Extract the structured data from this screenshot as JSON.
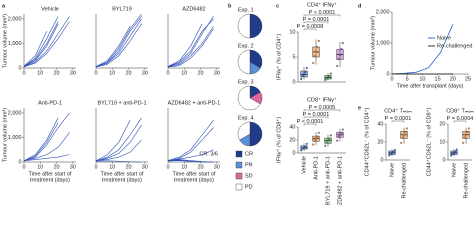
{
  "chart_data": [
    {
      "type": "line",
      "panel": "a",
      "title": "Vehicle",
      "ylabel": "Tumour volume (mm³)",
      "x": [
        0,
        7,
        14,
        21,
        28
      ],
      "color": "#2a4db5",
      "xlim": [
        0,
        32
      ],
      "ylim": [
        0,
        2200
      ],
      "xticks": [
        0,
        10,
        20,
        30
      ],
      "yticks": [
        0,
        {
          "value": 1000,
          "label": "1,000"
        },
        {
          "value": 2000,
          "label": "2,000"
        }
      ],
      "series": [
        {
          "values": [
            60,
            400,
            1200,
            2100,
            null
          ]
        },
        {
          "values": [
            50,
            300,
            900,
            1800,
            null
          ]
        },
        {
          "values": [
            70,
            500,
            1500,
            null,
            null
          ]
        },
        {
          "values": [
            40,
            250,
            700,
            1400,
            2100
          ]
        },
        {
          "values": [
            60,
            350,
            1000,
            1900,
            null
          ]
        },
        {
          "values": [
            50,
            200,
            600,
            1200,
            1900
          ]
        }
      ]
    },
    {
      "type": "line",
      "title": "BYL719",
      "x": [
        0,
        7,
        14,
        21,
        28
      ],
      "color": "#2a4db5",
      "xlim": [
        0,
        32
      ],
      "ylim": [
        0,
        2200
      ],
      "xticks": [
        0,
        10,
        20,
        30
      ],
      "series": [
        {
          "values": [
            50,
            200,
            700,
            1500,
            2100
          ]
        },
        {
          "values": [
            60,
            300,
            900,
            1700,
            null
          ]
        },
        {
          "values": [
            40,
            150,
            500,
            1100,
            1800
          ]
        },
        {
          "values": [
            50,
            250,
            800,
            1600,
            2200
          ]
        },
        {
          "values": [
            60,
            200,
            600,
            1300,
            2000
          ]
        }
      ]
    },
    {
      "type": "line",
      "title": "AZD6482",
      "x": [
        0,
        7,
        14,
        21,
        28
      ],
      "color": "#2a4db5",
      "xlim": [
        0,
        32
      ],
      "ylim": [
        0,
        2200
      ],
      "xticks": [
        0,
        10,
        20,
        30
      ],
      "series": [
        {
          "values": [
            50,
            200,
            600,
            1400,
            2100
          ]
        },
        {
          "values": [
            40,
            150,
            500,
            1000,
            1700
          ]
        },
        {
          "values": [
            60,
            300,
            900,
            1800,
            null
          ]
        },
        {
          "values": [
            50,
            250,
            700,
            1500,
            2000
          ]
        },
        {
          "values": [
            40,
            100,
            400,
            900,
            1600
          ]
        }
      ]
    },
    {
      "type": "line",
      "title": "Anti-PD-1",
      "ylabel": "Tumour volume (mm³)",
      "xlabel": [
        "Time after start of",
        "treatment (days)"
      ],
      "x": [
        0,
        7,
        14,
        21,
        28
      ],
      "color": "#2a4db5",
      "xlim": [
        0,
        32
      ],
      "ylim": [
        0,
        2200
      ],
      "xticks": [
        0,
        10,
        20,
        30
      ],
      "yticks": [
        0,
        {
          "value": 1000,
          "label": "1,000"
        },
        {
          "value": 2000,
          "label": "2,000"
        }
      ],
      "series": [
        {
          "values": [
            50,
            300,
            900,
            1800,
            null
          ]
        },
        {
          "values": [
            40,
            200,
            700,
            1400,
            2000
          ]
        },
        {
          "values": [
            60,
            150,
            300,
            600,
            1200
          ]
        },
        {
          "values": [
            50,
            100,
            150,
            200,
            300
          ]
        },
        {
          "values": [
            40,
            250,
            800,
            1600,
            null
          ]
        }
      ]
    },
    {
      "type": "line",
      "title": "BYL719 + anti-PD-1",
      "xlabel": [
        "Time after start of",
        "treatment (days)"
      ],
      "x": [
        0,
        7,
        14,
        21,
        28
      ],
      "color": "#2a4db5",
      "xlim": [
        0,
        32
      ],
      "ylim": [
        0,
        2200
      ],
      "xticks": [
        0,
        10,
        20,
        30
      ],
      "series": [
        {
          "values": [
            50,
            300,
            800,
            1700,
            null
          ]
        },
        {
          "values": [
            40,
            200,
            500,
            1100,
            1800
          ]
        },
        {
          "values": [
            60,
            100,
            200,
            400,
            900
          ]
        },
        {
          "values": [
            50,
            150,
            350,
            800,
            1500
          ]
        },
        {
          "values": [
            40,
            50,
            30,
            10,
            0
          ]
        }
      ]
    },
    {
      "type": "line",
      "title": "AZD6482 + anti-PD-1",
      "xlabel": [
        "Time after start of",
        "treatment (days)"
      ],
      "annotation": "CR: 3/6",
      "x": [
        0,
        7,
        14,
        21,
        28
      ],
      "color": "#2a4db5",
      "xlim": [
        0,
        32
      ],
      "ylim": [
        0,
        2200
      ],
      "xticks": [
        0,
        10,
        20,
        30
      ],
      "series": [
        {
          "values": [
            50,
            100,
            60,
            20,
            0
          ]
        },
        {
          "values": [
            40,
            80,
            30,
            0,
            0
          ]
        },
        {
          "values": [
            60,
            200,
            500,
            1100,
            1700
          ]
        },
        {
          "values": [
            50,
            60,
            20,
            0,
            0
          ]
        },
        {
          "values": [
            40,
            150,
            400,
            900,
            1400
          ]
        },
        {
          "values": [
            50,
            120,
            200,
            300,
            500
          ]
        }
      ]
    },
    {
      "type": "pie",
      "panel": "b",
      "title": "Exp. 1",
      "categories": [
        "CR",
        "PR",
        "SD",
        "PD"
      ],
      "colors": [
        "#1f3b8c",
        "#5b8fd9",
        "#e2659f",
        "#ffffff"
      ],
      "values": [
        3,
        0,
        0,
        3
      ]
    },
    {
      "type": "pie",
      "title": "Exp. 2",
      "colors": [
        "#1f3b8c",
        "#5b8fd9",
        "#e2659f",
        "#ffffff"
      ],
      "values": [
        2,
        1,
        0,
        3
      ]
    },
    {
      "type": "pie",
      "title": "Exp. 3",
      "colors": [
        "#1f3b8c",
        "#5b8fd9",
        "#e2659f",
        "#ffffff"
      ],
      "values": [
        1,
        0,
        1,
        4
      ]
    },
    {
      "type": "pie",
      "title": "Exp. 4",
      "colors": [
        "#1f3b8c",
        "#5b8fd9",
        "#e2659f",
        "#ffffff"
      ],
      "values": [
        3,
        1,
        0,
        2
      ]
    },
    {
      "type": "box",
      "panel": "c",
      "title": "CD4⁺ IFNγ⁺",
      "ylabel": "IFNγ⁺ (% of CD4⁺)",
      "categories": [
        null,
        null,
        null,
        null
      ],
      "colors": [
        "#3d6fd6",
        "#f28c38",
        "#4caf50",
        "#b45fc8"
      ],
      "ylim": [
        0,
        10
      ],
      "yticks": [
        0,
        5,
        10
      ],
      "annotations": [
        "P = 0.0008",
        "P = 0.0001",
        "P < 0.0001"
      ],
      "boxes": [
        {
          "whislo": 0.5,
          "q1": 1,
          "med": 1.5,
          "q3": 2.2,
          "whishi": 3,
          "points": [
            0.6,
            1.2,
            1.6,
            2.0,
            2.8
          ]
        },
        {
          "whislo": 3.5,
          "q1": 5,
          "med": 6,
          "q3": 7,
          "whishi": 8.5,
          "points": [
            3.8,
            5.2,
            6.1,
            7.0,
            8.2
          ]
        },
        {
          "whislo": 0.3,
          "q1": 0.6,
          "med": 0.9,
          "q3": 1.3,
          "whishi": 1.8,
          "points": [
            0.4,
            0.7,
            1.0,
            1.2,
            1.7
          ]
        },
        {
          "whislo": 3,
          "q1": 4.5,
          "med": 5.5,
          "q3": 6.5,
          "whishi": 8,
          "points": [
            3.2,
            4.6,
            5.4,
            6.6,
            7.8
          ]
        }
      ]
    },
    {
      "type": "box",
      "title": "CD8⁺ IFNγ⁺",
      "ylabel": "IFNγ⁺ (% of CD8⁺)",
      "categories": [
        "Vehicle",
        "Anti-PD-1",
        "BYL719 + anti-PD-1",
        "AZD6482 + anti-PD-1"
      ],
      "colors": [
        "#3d6fd6",
        "#f28c38",
        "#4caf50",
        "#b45fc8"
      ],
      "ylim": [
        0,
        40
      ],
      "yticks": [
        0,
        20,
        40
      ],
      "annotations": [
        "P < 0.0001",
        "P = 0.0001",
        "P = 0.0005"
      ],
      "boxes": [
        {
          "whislo": 3,
          "q1": 6,
          "med": 8,
          "q3": 11,
          "whishi": 15,
          "points": [
            4,
            7,
            8,
            10,
            14
          ]
        },
        {
          "whislo": 12,
          "q1": 18,
          "med": 22,
          "q3": 26,
          "whishi": 32,
          "points": [
            13,
            19,
            22,
            25,
            31
          ]
        },
        {
          "whislo": 10,
          "q1": 15,
          "med": 19,
          "q3": 23,
          "whishi": 28,
          "points": [
            11,
            16,
            19,
            22,
            27
          ]
        },
        {
          "whislo": 18,
          "q1": 24,
          "med": 28,
          "q3": 32,
          "whishi": 37,
          "points": [
            19,
            25,
            28,
            31,
            36
          ]
        }
      ]
    },
    {
      "type": "line",
      "panel": "d",
      "ylabel": "Tumour volume (mm³)",
      "xlabel": [
        "Time after transplant (days)"
      ],
      "legend": "right",
      "x": [
        0,
        4,
        8,
        12,
        16,
        20
      ],
      "xlim": [
        0,
        25
      ],
      "ylim": [
        0,
        2000
      ],
      "xticks": [
        0,
        5,
        10,
        15,
        20,
        25
      ],
      "yticks": [
        0,
        {
          "value": 1000,
          "label": "1,000"
        },
        {
          "value": 2000,
          "label": "2,000"
        }
      ],
      "series": [
        {
          "name": "Naive",
          "color": "#3d6fd6",
          "values": [
            0,
            20,
            60,
            200,
            700,
            1600
          ]
        },
        {
          "name": "Re-challenged",
          "color": "#333333",
          "values": [
            0,
            0,
            0,
            0,
            0,
            0
          ]
        }
      ]
    },
    {
      "type": "box",
      "panel": "e",
      "title": "CD4⁺ Tₘₑₘ",
      "ylabel": "CD44⁺CD62L⁻ (% of CD4⁺)",
      "categories": [
        "Naive",
        "Re-challenged"
      ],
      "colors": [
        "#3d6fd6",
        "#f28c38"
      ],
      "ylim": [
        0,
        40
      ],
      "yticks": [
        0,
        20,
        40
      ],
      "annotations": [
        "P = 0.0001"
      ],
      "boxes": [
        {
          "whislo": 4,
          "q1": 6,
          "med": 8,
          "q3": 10,
          "whishi": 12,
          "points": [
            5,
            7,
            8,
            9,
            11
          ]
        },
        {
          "whislo": 18,
          "q1": 24,
          "med": 28,
          "q3": 32,
          "whishi": 36,
          "points": [
            19,
            25,
            28,
            31,
            35
          ]
        }
      ]
    },
    {
      "type": "box",
      "title": "CD8⁺ Tₘₑₘ",
      "ylabel": "CD44⁺CD62L⁻ (% of CD8⁺)",
      "categories": [
        "Naive",
        "Re-challenged"
      ],
      "colors": [
        "#3d6fd6",
        "#f28c38"
      ],
      "ylim": [
        0,
        20
      ],
      "yticks": [
        0,
        10,
        20
      ],
      "annotations": [
        "P = 0.0004"
      ],
      "boxes": [
        {
          "whislo": 2,
          "q1": 3,
          "med": 4,
          "q3": 5,
          "whishi": 6,
          "points": [
            2.5,
            3.5,
            4,
            4.8,
            5.8
          ]
        },
        {
          "whislo": 9,
          "q1": 12,
          "med": 14,
          "q3": 16,
          "whishi": 18,
          "points": [
            9.5,
            12.5,
            14,
            15.5,
            17.5
          ]
        }
      ]
    }
  ]
}
